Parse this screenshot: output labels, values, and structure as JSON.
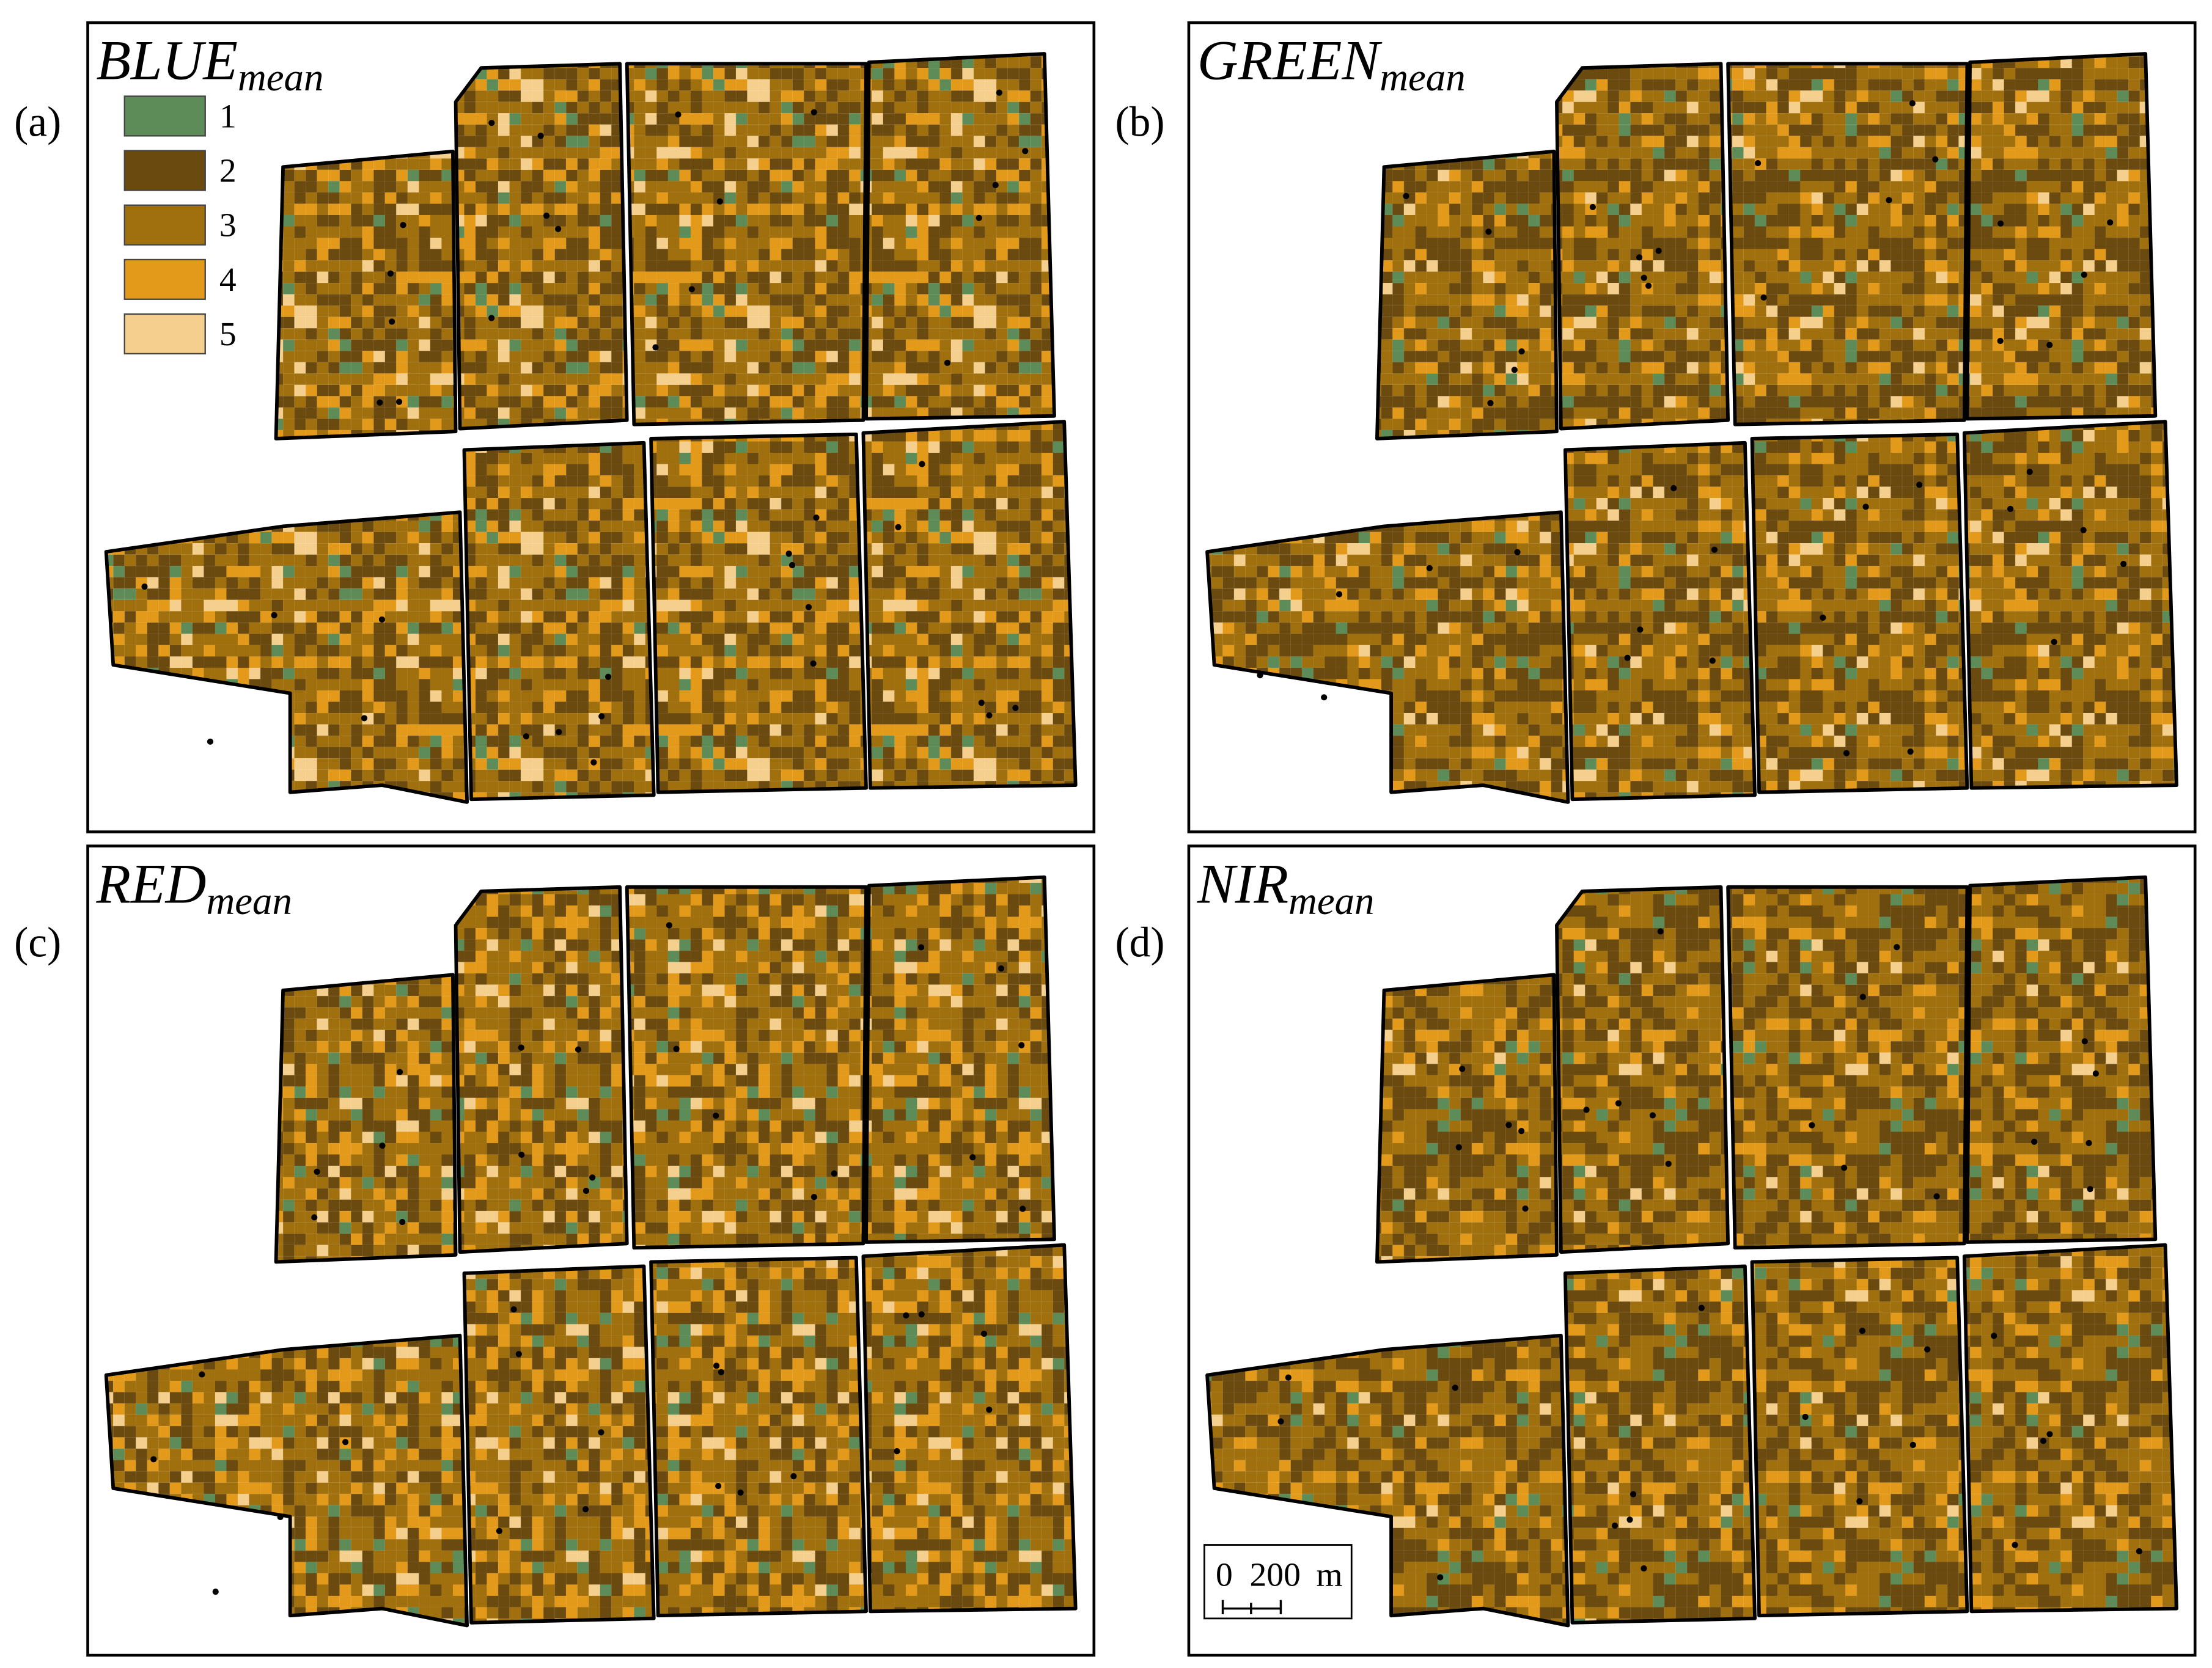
{
  "panels": [
    {
      "label": "(a)",
      "title": "BLUE",
      "title_sub": "mean"
    },
    {
      "label": "(b)",
      "title": "GREEN",
      "title_sub": "mean"
    },
    {
      "label": "(c)",
      "title": "RED",
      "title_sub": "mean"
    },
    {
      "label": "(d)",
      "title": "NIR",
      "title_sub": "mean"
    }
  ],
  "legend": [
    {
      "label": "1",
      "color": "#5d8c58"
    },
    {
      "label": "2",
      "color": "#6b4a10"
    },
    {
      "label": "3",
      "color": "#a0700f"
    },
    {
      "label": "4",
      "color": "#e39a1a"
    },
    {
      "label": "5",
      "color": "#f5cf8e"
    }
  ],
  "scale_bar": {
    "start": "0",
    "end": "200",
    "unit": "m"
  }
}
